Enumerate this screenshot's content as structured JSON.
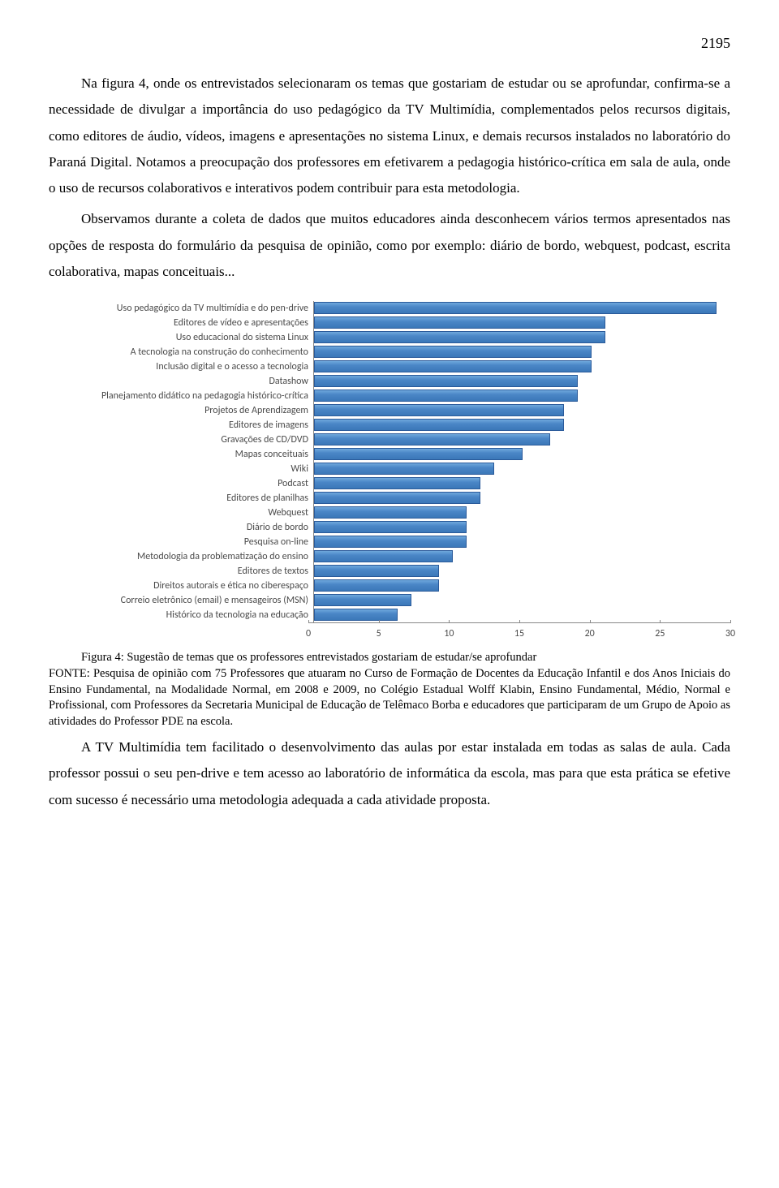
{
  "page_number": "2195",
  "paragraphs": {
    "p1": "Na figura 4, onde os entrevistados selecionaram os temas que gostariam de estudar ou se aprofundar, confirma-se a necessidade de divulgar a importância do uso pedagógico da TV Multimídia, complementados pelos recursos digitais, como editores de áudio, vídeos, imagens e apresentações no sistema Linux, e demais recursos instalados no laboratório do Paraná Digital. Notamos a preocupação dos professores em efetivarem a pedagogia histórico-crítica em sala de aula, onde o uso de recursos colaborativos e interativos podem contribuir para esta metodologia.",
    "p2": "Observamos durante a coleta de dados que muitos educadores ainda desconhecem vários termos apresentados nas opções de resposta do formulário da pesquisa de opinião, como por exemplo: diário de bordo, webquest, podcast, escrita colaborativa, mapas conceituais...",
    "p3": "A TV Multimídia tem facilitado o desenvolvimento das aulas por estar instalada em todas as salas de aula. Cada professor possui o seu pen-drive e tem acesso ao laboratório de informática da escola, mas para que esta prática se efetive com sucesso é necessário uma metodologia adequada a cada atividade proposta."
  },
  "caption": {
    "title": "Figura 4: Sugestão de temas que os professores entrevistados gostariam de estudar/se aprofundar",
    "body": "FONTE: Pesquisa de opinião com 75 Professores que atuaram no Curso de Formação de Docentes da Educação Infantil e dos Anos Iniciais do Ensino Fundamental, na Modalidade Normal, em 2008 e 2009, no Colégio Estadual Wolff Klabin, Ensino Fundamental, Médio, Normal e Profissional, com Professores da Secretaria Municipal de Educação de Telêmaco Borba e educadores que participaram de um Grupo de Apoio as atividades do Professor PDE na escola."
  },
  "chart": {
    "type": "bar-horizontal",
    "xlim": [
      0,
      30
    ],
    "xtick_step": 5,
    "xticks": [
      "0",
      "5",
      "10",
      "15",
      "20",
      "25",
      "30"
    ],
    "bar_color_top": "#6fa8dc",
    "bar_color_mid": "#4a86c7",
    "bar_color_bottom": "#3b78b8",
    "bar_border": "#2a5a9a",
    "axis_color": "#888888",
    "label_color": "#4a4a4a",
    "label_fontfamily": "Calibri",
    "label_fontsize": 12,
    "rows": [
      {
        "label": "Uso pedagógico da TV multimídia e do pen-drive",
        "value": 29
      },
      {
        "label": "Editores de vídeo e apresentações",
        "value": 21
      },
      {
        "label": "Uso educacional do sistema Linux",
        "value": 21
      },
      {
        "label": "A tecnologia na construção do conhecimento",
        "value": 20
      },
      {
        "label": "Inclusão digital e o acesso a tecnologia",
        "value": 20
      },
      {
        "label": "Datashow",
        "value": 19
      },
      {
        "label": "Planejamento didático na pedagogia histórico-crítica",
        "value": 19
      },
      {
        "label": "Projetos de Aprendizagem",
        "value": 18
      },
      {
        "label": "Editores de imagens",
        "value": 18
      },
      {
        "label": "Gravações de CD/DVD",
        "value": 17
      },
      {
        "label": "Mapas conceituais",
        "value": 15
      },
      {
        "label": "Wiki",
        "value": 13
      },
      {
        "label": "Podcast",
        "value": 12
      },
      {
        "label": "Editores de planilhas",
        "value": 12
      },
      {
        "label": "Webquest",
        "value": 11
      },
      {
        "label": "Diário de bordo",
        "value": 11
      },
      {
        "label": "Pesquisa on-line",
        "value": 11
      },
      {
        "label": "Metodologia da problematização do ensino",
        "value": 10
      },
      {
        "label": "Editores de textos",
        "value": 9
      },
      {
        "label": "Direitos autorais e ética no ciberespaço",
        "value": 9
      },
      {
        "label": "Correio eletrônico (email) e mensageiros (MSN)",
        "value": 7
      },
      {
        "label": "Histórico da tecnologia na educação",
        "value": 6
      }
    ]
  }
}
